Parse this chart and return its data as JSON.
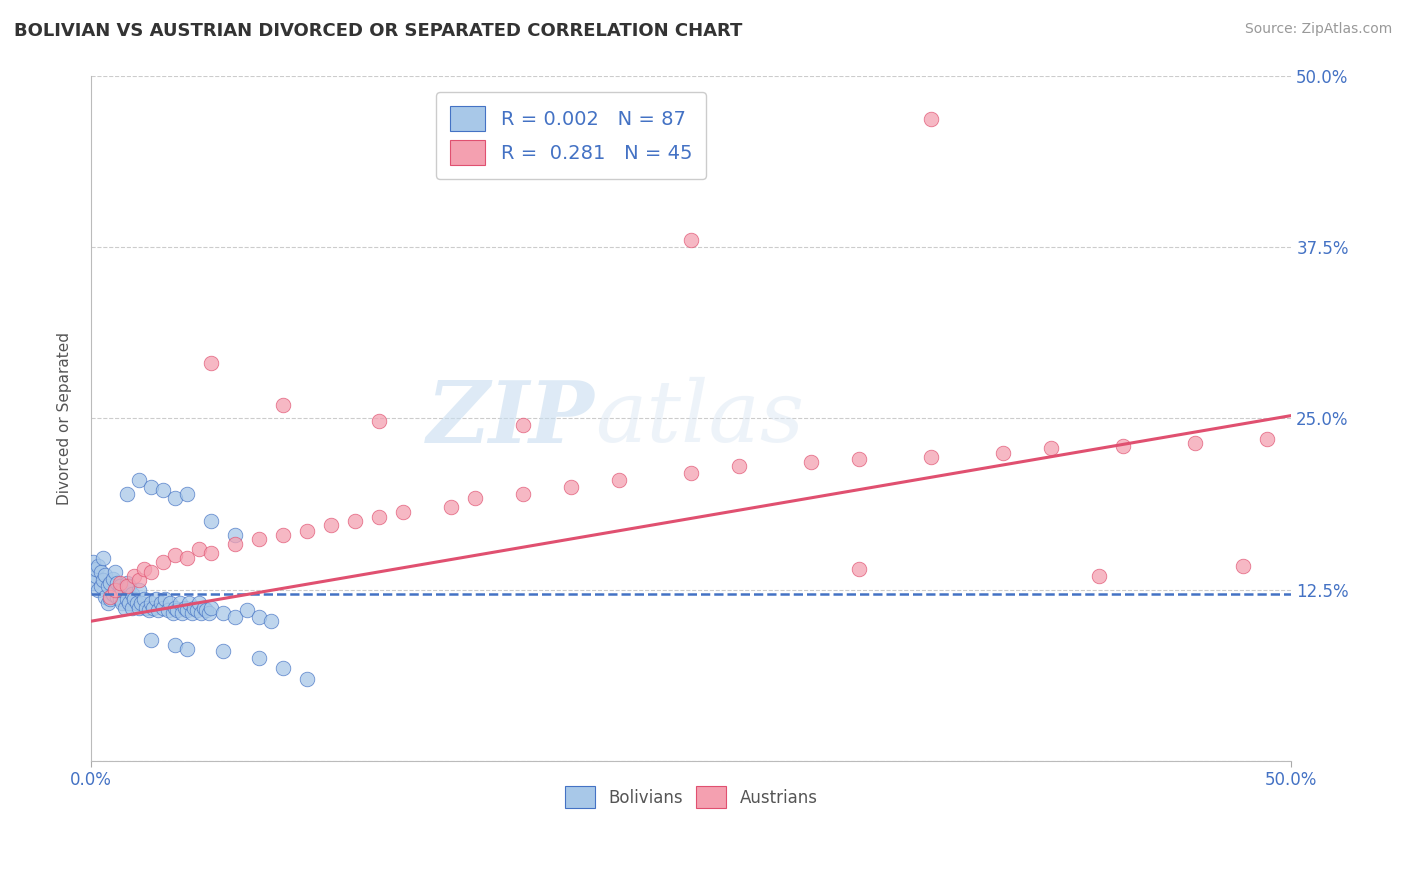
{
  "title": "BOLIVIAN VS AUSTRIAN DIVORCED OR SEPARATED CORRELATION CHART",
  "source": "Source: ZipAtlas.com",
  "ylabel": "Divorced or Separated",
  "legend_bolivians": "Bolivians",
  "legend_austrians": "Austrians",
  "legend_r_bolivian": "R = 0.002",
  "legend_n_bolivian": "N = 87",
  "legend_r_austrian": "R =  0.281",
  "legend_n_austrian": "N = 45",
  "xlim": [
    0.0,
    0.5
  ],
  "ylim": [
    0.0,
    0.5
  ],
  "yticks": [
    0.0,
    0.125,
    0.25,
    0.375,
    0.5
  ],
  "ytick_labels": [
    "",
    "12.5%",
    "25.0%",
    "37.5%",
    "50.0%"
  ],
  "color_bolivian": "#a8c8e8",
  "color_austrian": "#f4a0b0",
  "regression_bolivian_color": "#4472c4",
  "regression_austrian_color": "#e05070",
  "grid_color": "#cccccc",
  "background_color": "#ffffff",
  "watermark_zip": "ZIP",
  "watermark_atlas": "atlas",
  "bolivian_x": [
    0.001,
    0.001,
    0.002,
    0.002,
    0.003,
    0.003,
    0.004,
    0.004,
    0.005,
    0.005,
    0.006,
    0.006,
    0.007,
    0.007,
    0.008,
    0.008,
    0.009,
    0.009,
    0.01,
    0.01,
    0.011,
    0.011,
    0.012,
    0.012,
    0.013,
    0.013,
    0.014,
    0.015,
    0.015,
    0.016,
    0.016,
    0.017,
    0.017,
    0.018,
    0.019,
    0.02,
    0.02,
    0.021,
    0.022,
    0.023,
    0.024,
    0.025,
    0.026,
    0.027,
    0.028,
    0.029,
    0.03,
    0.031,
    0.032,
    0.033,
    0.034,
    0.035,
    0.036,
    0.037,
    0.038,
    0.039,
    0.04,
    0.041,
    0.042,
    0.043,
    0.044,
    0.045,
    0.046,
    0.047,
    0.048,
    0.049,
    0.05,
    0.055,
    0.06,
    0.065,
    0.07,
    0.075,
    0.015,
    0.02,
    0.025,
    0.03,
    0.035,
    0.04,
    0.05,
    0.06,
    0.025,
    0.035,
    0.04,
    0.055,
    0.07,
    0.08,
    0.09
  ],
  "bolivian_y": [
    0.13,
    0.145,
    0.135,
    0.14,
    0.125,
    0.142,
    0.128,
    0.138,
    0.132,
    0.148,
    0.12,
    0.136,
    0.115,
    0.128,
    0.118,
    0.13,
    0.122,
    0.133,
    0.125,
    0.138,
    0.12,
    0.13,
    0.118,
    0.128,
    0.115,
    0.125,
    0.112,
    0.118,
    0.13,
    0.115,
    0.128,
    0.112,
    0.122,
    0.118,
    0.115,
    0.112,
    0.125,
    0.115,
    0.118,
    0.112,
    0.11,
    0.115,
    0.112,
    0.118,
    0.11,
    0.115,
    0.112,
    0.118,
    0.11,
    0.115,
    0.108,
    0.112,
    0.11,
    0.115,
    0.108,
    0.112,
    0.11,
    0.115,
    0.108,
    0.112,
    0.11,
    0.115,
    0.108,
    0.112,
    0.11,
    0.108,
    0.112,
    0.108,
    0.105,
    0.11,
    0.105,
    0.102,
    0.195,
    0.205,
    0.2,
    0.198,
    0.192,
    0.195,
    0.175,
    0.165,
    0.088,
    0.085,
    0.082,
    0.08,
    0.075,
    0.068,
    0.06
  ],
  "austrian_x": [
    0.008,
    0.01,
    0.012,
    0.015,
    0.018,
    0.02,
    0.022,
    0.025,
    0.03,
    0.035,
    0.04,
    0.045,
    0.05,
    0.06,
    0.07,
    0.08,
    0.09,
    0.1,
    0.11,
    0.12,
    0.13,
    0.15,
    0.16,
    0.18,
    0.2,
    0.22,
    0.25,
    0.27,
    0.3,
    0.32,
    0.35,
    0.38,
    0.4,
    0.43,
    0.46,
    0.49,
    0.05,
    0.08,
    0.12,
    0.18,
    0.25,
    0.32,
    0.42,
    0.48,
    0.35
  ],
  "austrian_y": [
    0.12,
    0.125,
    0.13,
    0.128,
    0.135,
    0.132,
    0.14,
    0.138,
    0.145,
    0.15,
    0.148,
    0.155,
    0.152,
    0.158,
    0.162,
    0.165,
    0.168,
    0.172,
    0.175,
    0.178,
    0.182,
    0.185,
    0.192,
    0.195,
    0.2,
    0.205,
    0.21,
    0.215,
    0.218,
    0.22,
    0.222,
    0.225,
    0.228,
    0.23,
    0.232,
    0.235,
    0.29,
    0.26,
    0.248,
    0.245,
    0.38,
    0.14,
    0.135,
    0.142,
    0.468
  ]
}
